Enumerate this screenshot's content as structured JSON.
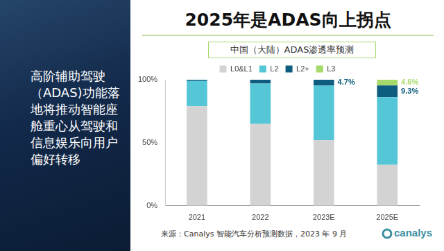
{
  "slide": {
    "title": "2025年是ADAS向上拐点",
    "side_text": "高阶辅助驾驶（ADAS)功能落地将推动智能座舱重心从驾驶和信息娱乐向用户偏好转移",
    "source": "来源：Canalys 智能汽车分析预测数据，2023 年 9 月",
    "logo": "canalys"
  },
  "chart_data": {
    "type": "bar",
    "title": "中国（大陆）ADAS渗透率预测",
    "stacked": true,
    "legend": "top",
    "grid": false,
    "categories": [
      "2021",
      "2022",
      "2023E",
      "2025E"
    ],
    "series": [
      {
        "name": "L0&L1",
        "color": "#d3d3d3",
        "values": [
          79,
          65,
          52,
          32.5
        ]
      },
      {
        "name": "L2",
        "color": "#55c6d6",
        "values": [
          20,
          32,
          43.3,
          53.6
        ]
      },
      {
        "name": "L2+",
        "color": "#0e5d7e",
        "values": [
          1,
          3,
          4.7,
          9.3
        ],
        "value_labels": [
          null,
          null,
          "4.7%",
          "9.3%"
        ]
      },
      {
        "name": "L3",
        "color": "#a6d96a",
        "values": [
          0,
          0,
          0,
          4.6
        ],
        "value_labels": [
          null,
          null,
          null,
          "4.6%"
        ]
      }
    ],
    "ylim": [
      0,
      100
    ],
    "yticks": [
      {
        "value": 0,
        "label": "0%"
      },
      {
        "value": 50,
        "label": "50%"
      },
      {
        "value": 100,
        "label": "100%"
      }
    ]
  }
}
